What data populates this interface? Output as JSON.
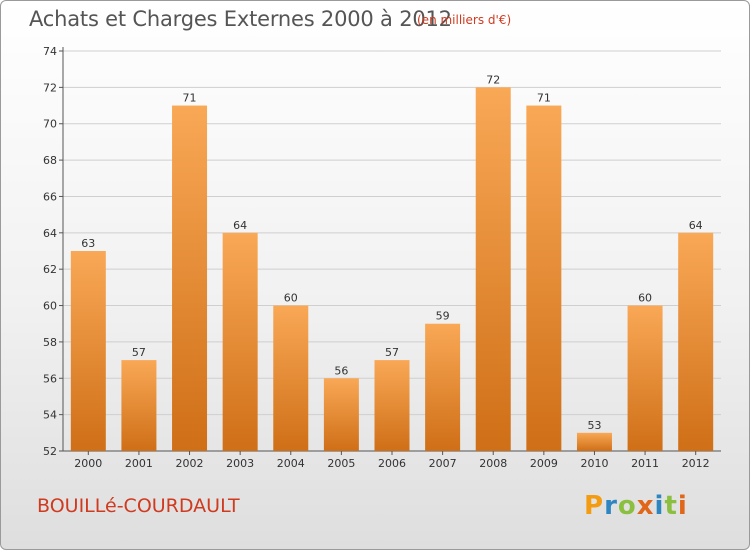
{
  "title": "Achats et Charges Externes 2000 à 2012",
  "subtitle": "(en milliers d'€)",
  "commune": "BOUILLé-COURDAULT",
  "logo": {
    "text": "Proxiti",
    "letters": [
      {
        "char": "P",
        "color": "#f39c12"
      },
      {
        "char": "r",
        "color": "#2e86c1"
      },
      {
        "char": "o",
        "color": "#8bbf3f"
      },
      {
        "char": "x",
        "color": "#e0661a"
      },
      {
        "char": "i",
        "color": "#2e86c1"
      },
      {
        "char": "t",
        "color": "#8bbf3f"
      },
      {
        "char": "i",
        "color": "#e0661a"
      }
    ]
  },
  "colors": {
    "bar_light": "#f9a856",
    "bar_dark": "#cf6f17",
    "axis": "#555555",
    "grid": "#cfcfcf",
    "accent_text": "#d03a1f"
  },
  "chart_data": {
    "type": "bar",
    "title": "Achats et Charges Externes 2000 à 2012",
    "subtitle": "(en milliers d'€)",
    "categories": [
      "2000",
      "2001",
      "2002",
      "2003",
      "2004",
      "2005",
      "2006",
      "2007",
      "2008",
      "2009",
      "2010",
      "2011",
      "2012"
    ],
    "values": [
      63,
      57,
      71,
      64,
      60,
      56,
      57,
      59,
      72,
      71,
      53,
      60,
      64
    ],
    "ylim": [
      52,
      74
    ],
    "yticks": [
      52,
      54,
      56,
      58,
      60,
      62,
      64,
      66,
      68,
      70,
      72,
      74
    ],
    "grid": true,
    "data_labels": true
  }
}
